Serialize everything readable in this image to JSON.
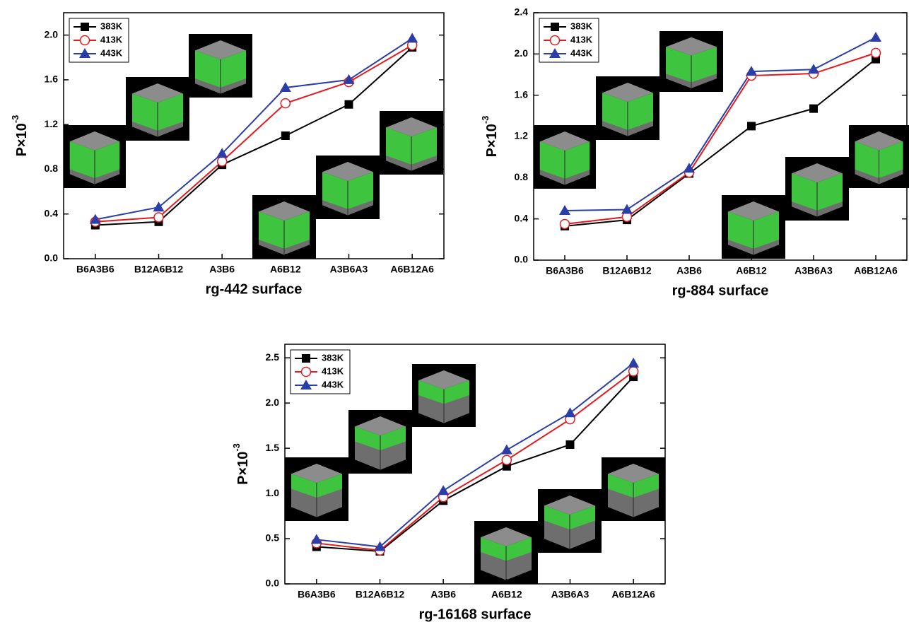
{
  "chart_data": [
    {
      "type": "line",
      "xlabel": "rg-442 surface",
      "ylabel": "P×10",
      "ylabel_sup": "-3",
      "categories": [
        "B6A3B6",
        "B12A6B12",
        "A3B6",
        "A6B12",
        "A3B6A3",
        "A6B12A6"
      ],
      "ylim": [
        0,
        2.2
      ],
      "yticks": [
        {
          "value": 0,
          "label": "0.0"
        },
        0.4,
        0.8,
        1.2,
        1.6,
        {
          "value": 2,
          "label": "2.0"
        }
      ],
      "legend": "upper-left",
      "series": [
        {
          "name": "383K",
          "color": "#000000",
          "marker": "square",
          "values": [
            0.3,
            0.33,
            0.84,
            1.1,
            1.38,
            1.89
          ]
        },
        {
          "name": "413K",
          "color": "#e41a1c",
          "marker": "circle",
          "values": [
            0.33,
            0.37,
            0.87,
            1.39,
            1.58,
            1.91
          ]
        },
        {
          "name": "443K",
          "color": "#2b3ea8",
          "marker": "triangle",
          "values": [
            0.35,
            0.46,
            0.94,
            1.53,
            1.6,
            1.97
          ]
        }
      ]
    },
    {
      "type": "line",
      "xlabel": "rg-884 surface",
      "ylabel": "P×10",
      "ylabel_sup": "-3",
      "categories": [
        "B6A3B6",
        "B12A6B12",
        "A3B6",
        "A6B12",
        "A3B6A3",
        "A6B12A6"
      ],
      "ylim": [
        0,
        2.4
      ],
      "yticks": [
        {
          "value": 0,
          "label": "0.0"
        },
        0.4,
        0.8,
        1.2,
        1.6,
        {
          "value": 2,
          "label": "2.0"
        },
        2.4
      ],
      "legend": "upper-left",
      "series": [
        {
          "name": "383K",
          "color": "#000000",
          "marker": "square",
          "values": [
            0.33,
            0.39,
            0.84,
            1.3,
            1.47,
            1.95
          ]
        },
        {
          "name": "413K",
          "color": "#e41a1c",
          "marker": "circle",
          "values": [
            0.35,
            0.42,
            0.85,
            1.79,
            1.81,
            2.01
          ]
        },
        {
          "name": "443K",
          "color": "#2b3ea8",
          "marker": "triangle",
          "values": [
            0.48,
            0.49,
            0.89,
            1.83,
            1.85,
            2.16
          ]
        }
      ]
    },
    {
      "type": "line",
      "xlabel": "rg-16168 surface",
      "ylabel": "P×10",
      "ylabel_sup": "-3",
      "categories": [
        "B6A3B6",
        "B12A6B12",
        "A3B6",
        "A6B12",
        "A3B6A3",
        "A6B12A6"
      ],
      "ylim": [
        0,
        2.65
      ],
      "yticks": [
        {
          "value": 0,
          "label": "0.0"
        },
        0.5,
        {
          "value": 1,
          "label": "1.0"
        },
        1.5,
        {
          "value": 2,
          "label": "2.0"
        },
        2.5
      ],
      "legend": "upper-left",
      "series": [
        {
          "name": "383K",
          "color": "#000000",
          "marker": "square",
          "values": [
            0.41,
            0.36,
            0.92,
            1.3,
            1.54,
            2.29
          ]
        },
        {
          "name": "413K",
          "color": "#e41a1c",
          "marker": "circle",
          "values": [
            0.45,
            0.37,
            0.96,
            1.37,
            1.82,
            2.35
          ]
        },
        {
          "name": "443K",
          "color": "#2b3ea8",
          "marker": "triangle",
          "values": [
            0.49,
            0.41,
            1.03,
            1.48,
            1.89,
            2.44
          ]
        }
      ]
    }
  ]
}
